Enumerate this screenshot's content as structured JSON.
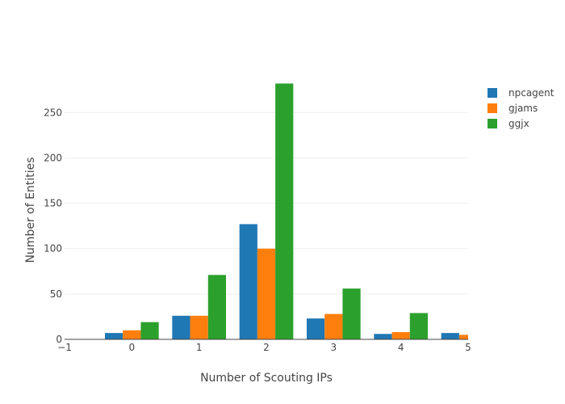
{
  "chart_data": {
    "type": "bar",
    "barmode": "grouped",
    "x": [
      0,
      1,
      2,
      3,
      4,
      5
    ],
    "series": [
      {
        "name": "npcagent",
        "color": "#1f77b4",
        "values": [
          7,
          26,
          127,
          23,
          6,
          7
        ]
      },
      {
        "name": "gjams",
        "color": "#ff7f0e",
        "values": [
          10,
          26,
          100,
          28,
          8,
          5
        ]
      },
      {
        "name": "ggjx",
        "color": "#2ca02c",
        "values": [
          19,
          71,
          282,
          56,
          29,
          null
        ]
      }
    ],
    "xlabel": "Number of Scouting IPs",
    "ylabel": "Number of Entities",
    "xlim": [
      -1,
      5
    ],
    "ylim": [
      0,
      285
    ],
    "xticks": [
      "−1",
      "0",
      "1",
      "2",
      "3",
      "4",
      "5"
    ],
    "xtick_values": [
      -1,
      0,
      1,
      2,
      3,
      4,
      5
    ],
    "yticks": [
      "0",
      "50",
      "100",
      "150",
      "200",
      "250"
    ],
    "ytick_values": [
      0,
      50,
      100,
      150,
      200,
      250
    ],
    "grid": "horizontal",
    "legend_position": "top-right"
  }
}
